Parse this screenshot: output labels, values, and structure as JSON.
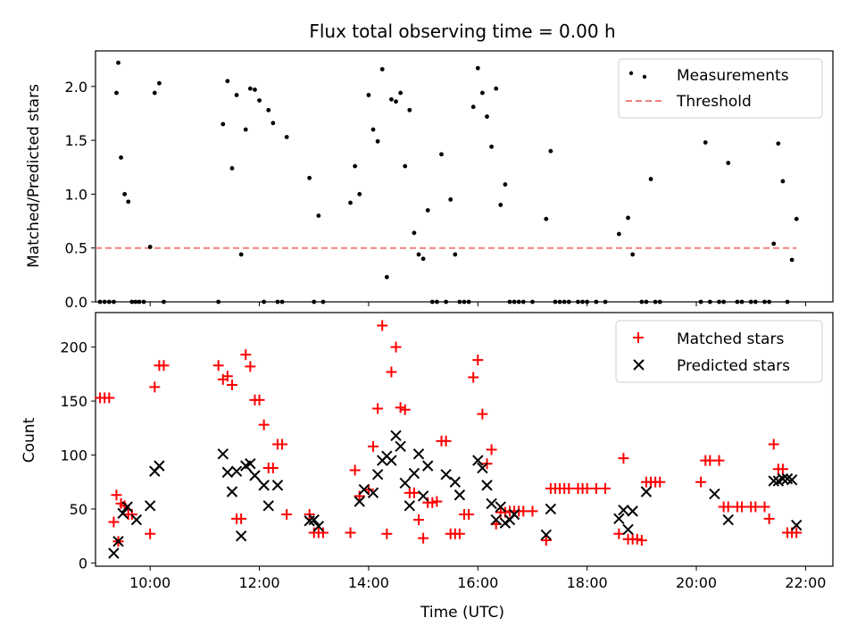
{
  "chart_data": [
    {
      "type": "scatter",
      "title": "Flux total observing time = 0.00 h",
      "xlabel": "",
      "ylabel": "Matched/Predicted stars",
      "xlim": [
        "09:00",
        "22:30"
      ],
      "ylim": [
        0,
        2.33
      ],
      "yticks": [
        "0.0",
        "0.5",
        "1.0",
        "1.5",
        "2.0"
      ],
      "legend_position": "upper right",
      "series": [
        {
          "name": "Measurements",
          "kind": "dots",
          "color": "#000000",
          "x": [
            "09:05",
            "09:10",
            "09:15",
            "09:25",
            "09:20",
            "09:23",
            "09:28",
            "09:32",
            "09:36",
            "09:40",
            "09:44",
            "09:48",
            "09:53",
            "10:00",
            "10:05",
            "10:10",
            "10:15",
            "11:15",
            "11:20",
            "11:25",
            "11:30",
            "11:35",
            "11:40",
            "11:45",
            "11:50",
            "11:55",
            "12:00",
            "12:05",
            "12:10",
            "12:15",
            "12:20",
            "12:25",
            "12:30",
            "12:55",
            "13:00",
            "13:05",
            "13:10",
            "13:40",
            "13:45",
            "13:50",
            "14:00",
            "14:05",
            "14:10",
            "14:15",
            "14:20",
            "14:25",
            "14:30",
            "14:35",
            "14:40",
            "14:45",
            "14:50",
            "14:55",
            "15:00",
            "15:05",
            "15:10",
            "15:15",
            "15:20",
            "15:25",
            "15:30",
            "15:35",
            "15:40",
            "15:45",
            "15:50",
            "15:55",
            "16:00",
            "16:05",
            "16:10",
            "16:15",
            "16:20",
            "16:25",
            "16:30",
            "16:35",
            "16:40",
            "16:45",
            "16:50",
            "17:00",
            "17:15",
            "17:20",
            "17:25",
            "17:30",
            "17:35",
            "17:40",
            "17:50",
            "17:55",
            "18:00",
            "18:10",
            "18:20",
            "18:35",
            "18:40",
            "18:45",
            "18:50",
            "18:55",
            "19:00",
            "19:05",
            "19:10",
            "19:15",
            "19:20",
            "20:05",
            "20:10",
            "20:15",
            "20:25",
            "20:30",
            "20:35",
            "20:45",
            "20:50",
            "21:00",
            "21:05",
            "21:15",
            "21:20",
            "21:25",
            "21:30",
            "21:35",
            "21:40",
            "21:45",
            "21:50"
          ],
          "y": [
            0,
            0,
            0,
            2.22,
            0,
            1.94,
            1.34,
            1.0,
            0.93,
            0,
            0,
            0,
            0,
            0.51,
            1.94,
            2.03,
            0,
            0,
            1.65,
            2.05,
            1.24,
            1.92,
            0.44,
            1.6,
            1.98,
            1.97,
            1.87,
            0,
            1.78,
            1.66,
            0,
            0,
            1.53,
            1.15,
            0,
            0.8,
            0,
            0.92,
            1.26,
            1.0,
            1.92,
            1.6,
            1.49,
            2.16,
            0.23,
            1.88,
            1.86,
            1.94,
            1.26,
            1.78,
            0.64,
            0.44,
            0.4,
            0.85,
            0,
            0,
            1.37,
            0,
            0.95,
            0.44,
            0,
            0,
            0,
            1.81,
            2.17,
            1.94,
            1.72,
            1.44,
            1.98,
            0.9,
            1.09,
            0,
            0,
            0,
            0,
            0,
            0.77,
            1.4,
            0,
            0,
            0,
            0,
            0,
            0,
            0,
            0,
            0,
            0.63,
            2.02,
            0.78,
            0.44,
            2.09,
            0,
            0,
            1.14,
            0,
            0,
            0,
            1.48,
            0,
            0,
            0,
            1.29,
            0,
            0,
            0,
            0,
            0,
            0,
            0.54,
            1.47,
            1.12,
            0,
            0.39,
            0.77
          ]
        },
        {
          "name": "Threshold",
          "kind": "dashed-line",
          "color": "#f08080",
          "x": [
            "09:00",
            "21:50"
          ],
          "y": [
            0.5,
            0.5
          ]
        }
      ]
    },
    {
      "type": "scatter",
      "title": "",
      "xlabel": "Time (UTC)",
      "ylabel": "Count",
      "xlim": [
        "09:00",
        "22:30"
      ],
      "ylim": [
        -3,
        232
      ],
      "yticks": [
        "0",
        "50",
        "100",
        "150",
        "200"
      ],
      "xticks": [
        "10:00",
        "12:00",
        "14:00",
        "16:00",
        "18:00",
        "20:00",
        "22:00"
      ],
      "legend_position": "upper right",
      "series": [
        {
          "name": "Matched stars",
          "marker": "+",
          "color": "#ff0000",
          "x": [
            "09:05",
            "09:10",
            "09:15",
            "09:25",
            "09:20",
            "09:23",
            "09:28",
            "09:32",
            "09:36",
            "09:40",
            "10:00",
            "10:05",
            "10:10",
            "10:15",
            "11:15",
            "11:20",
            "11:25",
            "11:30",
            "11:35",
            "11:40",
            "11:45",
            "11:50",
            "11:55",
            "12:00",
            "12:05",
            "12:10",
            "12:15",
            "12:20",
            "12:25",
            "12:30",
            "12:55",
            "13:00",
            "13:05",
            "13:10",
            "13:40",
            "13:45",
            "13:50",
            "14:00",
            "14:05",
            "14:10",
            "14:15",
            "14:20",
            "14:25",
            "14:30",
            "14:35",
            "14:40",
            "14:45",
            "14:50",
            "14:55",
            "15:00",
            "15:05",
            "15:10",
            "15:15",
            "15:20",
            "15:25",
            "15:30",
            "15:35",
            "15:40",
            "15:45",
            "15:50",
            "15:55",
            "16:00",
            "16:05",
            "16:10",
            "16:15",
            "16:20",
            "16:25",
            "16:30",
            "16:35",
            "16:40",
            "16:45",
            "16:50",
            "17:00",
            "17:15",
            "17:20",
            "17:25",
            "17:30",
            "17:35",
            "17:40",
            "17:50",
            "17:55",
            "18:00",
            "18:10",
            "18:20",
            "18:35",
            "18:40",
            "18:45",
            "18:50",
            "18:55",
            "19:00",
            "19:05",
            "19:10",
            "19:15",
            "19:20",
            "20:05",
            "20:10",
            "20:15",
            "20:25",
            "20:30",
            "20:35",
            "20:45",
            "20:50",
            "21:00",
            "21:05",
            "21:15",
            "21:20",
            "21:25",
            "21:30",
            "21:35",
            "21:40",
            "21:45",
            "21:50"
          ],
          "y": [
            153,
            153,
            153,
            20,
            38,
            63,
            55,
            53,
            45,
            45,
            27,
            163,
            183,
            183,
            183,
            170,
            173,
            165,
            41,
            41,
            193,
            182,
            151,
            151,
            128,
            88,
            88,
            110,
            110,
            45,
            45,
            28,
            28,
            28,
            28,
            86,
            62,
            68,
            108,
            143,
            220,
            27,
            177,
            200,
            144,
            142,
            65,
            65,
            40,
            23,
            56,
            56,
            57,
            113,
            113,
            27,
            27,
            27,
            45,
            45,
            172,
            188,
            138,
            92,
            105,
            36,
            47,
            47,
            48,
            48,
            48,
            48,
            48,
            21,
            69,
            69,
            69,
            69,
            69,
            69,
            69,
            69,
            69,
            69,
            27,
            97,
            22,
            22,
            22,
            21,
            75,
            75,
            75,
            75,
            75,
            95,
            95,
            95,
            52,
            52,
            52,
            52,
            52,
            52,
            52,
            41,
            110,
            87,
            87,
            28,
            28,
            28
          ],
          "note": "Approximate readings; values estimated from plot"
        },
        {
          "name": "Predicted stars",
          "marker": "x",
          "color": "#000000",
          "x": [
            "09:20",
            "09:25",
            "09:30",
            "09:35",
            "09:45",
            "10:00",
            "10:05",
            "10:10",
            "11:20",
            "11:25",
            "11:30",
            "11:35",
            "11:40",
            "11:45",
            "11:50",
            "11:55",
            "12:05",
            "12:10",
            "12:20",
            "12:55",
            "13:00",
            "13:05",
            "13:50",
            "13:55",
            "14:05",
            "14:10",
            "14:15",
            "14:20",
            "14:25",
            "14:30",
            "14:35",
            "14:40",
            "14:45",
            "14:50",
            "14:55",
            "15:00",
            "15:05",
            "15:25",
            "15:35",
            "15:40",
            "16:00",
            "16:05",
            "16:10",
            "16:15",
            "16:20",
            "16:25",
            "16:30",
            "16:35",
            "16:40",
            "17:15",
            "17:20",
            "18:35",
            "18:40",
            "18:45",
            "18:50",
            "19:05",
            "20:20",
            "20:35",
            "21:25",
            "21:30",
            "21:35",
            "21:40",
            "21:45",
            "21:50"
          ],
          "y": [
            9,
            20,
            46,
            52,
            40,
            53,
            85,
            90,
            101,
            84,
            66,
            85,
            25,
            90,
            92,
            81,
            72,
            53,
            72,
            39,
            40,
            34,
            57,
            68,
            65,
            82,
            95,
            99,
            95,
            118,
            108,
            74,
            53,
            83,
            101,
            62,
            90,
            82,
            75,
            63,
            95,
            88,
            72,
            55,
            40,
            52,
            37,
            40,
            45,
            26,
            50,
            41,
            49,
            31,
            48,
            66,
            64,
            40,
            76,
            76,
            78,
            78,
            77,
            35
          ]
        }
      ]
    }
  ]
}
